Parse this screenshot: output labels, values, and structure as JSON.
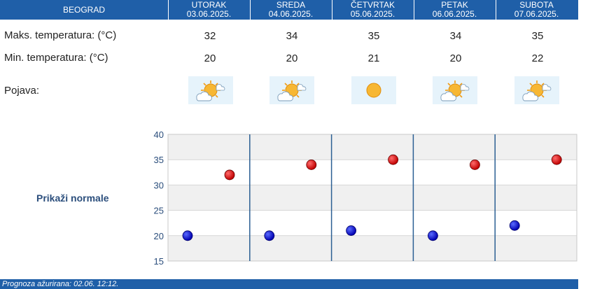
{
  "header": {
    "city": "BEOGRAD"
  },
  "days": [
    {
      "name": "UTORAK",
      "date": "03.06.2025.",
      "max": "32",
      "min": "20",
      "icon": "sun-cloud-icon"
    },
    {
      "name": "SREDA",
      "date": "04.06.2025.",
      "max": "34",
      "min": "20",
      "icon": "sun-cloud-icon"
    },
    {
      "name": "ČETVRTAK",
      "date": "05.06.2025.",
      "max": "35",
      "min": "21",
      "icon": "sun-icon"
    },
    {
      "name": "PETAK",
      "date": "06.06.2025.",
      "max": "34",
      "min": "20",
      "icon": "sun-cloud-icon"
    },
    {
      "name": "SUBOTA",
      "date": "07.06.2025.",
      "max": "35",
      "min": "22",
      "icon": "sun-cloud-icon"
    }
  ],
  "rows": {
    "max_label": "Maks. temperatura: (°C)",
    "min_label": "Min. temperatura: (°C)",
    "phenomenon_label": "Pojava:"
  },
  "normals_button": "Prikaži normale",
  "footer": {
    "updated": "Prognoza ažurirana:  02.06. 12:12."
  },
  "colors": {
    "header": "#1f5fa8",
    "max_marker": "#c00000",
    "min_marker": "#0000b0",
    "grid_band": "#f0f0f0",
    "day_divider": "#2b5f93"
  },
  "chart_data": {
    "type": "scatter",
    "categories": [
      "03.06.2025.",
      "04.06.2025.",
      "05.06.2025.",
      "06.06.2025.",
      "07.06.2025."
    ],
    "series": [
      {
        "values": [
          32,
          34,
          35,
          34,
          35
        ]
      },
      {
        "values": [
          20,
          20,
          21,
          20,
          22
        ]
      }
    ],
    "ylim": [
      15,
      40
    ],
    "yticks": [
      "15",
      "20",
      "25",
      "30",
      "35",
      "40"
    ],
    "grid": true
  }
}
